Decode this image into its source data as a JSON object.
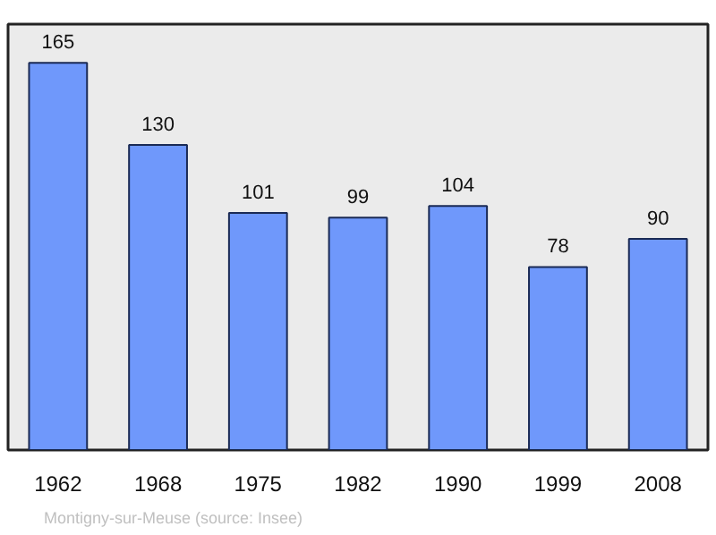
{
  "chart_data": {
    "type": "bar",
    "categories": [
      "1962",
      "1968",
      "1975",
      "1982",
      "1990",
      "1999",
      "2008"
    ],
    "values": [
      165,
      130,
      101,
      99,
      104,
      78,
      90
    ],
    "color": "#6f98fb",
    "data_labels": true,
    "grid": false,
    "annotations": [
      "Montigny-sur-Meuse    (source: Insee)"
    ]
  }
}
